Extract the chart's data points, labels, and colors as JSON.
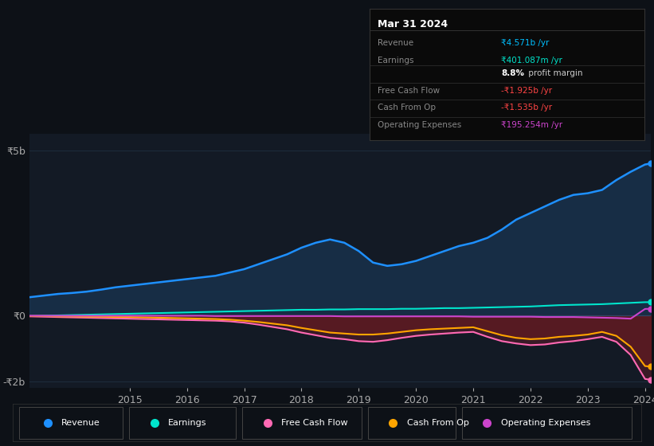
{
  "bg_color": "#0d1117",
  "plot_bg_color": "#131a25",
  "grid_color": "#1e2d3d",
  "years": [
    2013.25,
    2013.5,
    2013.75,
    2014.0,
    2014.25,
    2014.5,
    2014.75,
    2015.0,
    2015.25,
    2015.5,
    2015.75,
    2016.0,
    2016.25,
    2016.5,
    2016.75,
    2017.0,
    2017.25,
    2017.5,
    2017.75,
    2018.0,
    2018.25,
    2018.5,
    2018.75,
    2019.0,
    2019.25,
    2019.5,
    2019.75,
    2020.0,
    2020.25,
    2020.5,
    2020.75,
    2021.0,
    2021.25,
    2021.5,
    2021.75,
    2022.0,
    2022.25,
    2022.5,
    2022.75,
    2023.0,
    2023.25,
    2023.5,
    2023.75,
    2024.0,
    2024.1
  ],
  "revenue": [
    0.55,
    0.6,
    0.65,
    0.68,
    0.72,
    0.78,
    0.85,
    0.9,
    0.95,
    1.0,
    1.05,
    1.1,
    1.15,
    1.2,
    1.3,
    1.4,
    1.55,
    1.7,
    1.85,
    2.05,
    2.2,
    2.3,
    2.2,
    1.95,
    1.6,
    1.5,
    1.55,
    1.65,
    1.8,
    1.95,
    2.1,
    2.2,
    2.35,
    2.6,
    2.9,
    3.1,
    3.3,
    3.5,
    3.65,
    3.7,
    3.8,
    4.1,
    4.35,
    4.57,
    4.6
  ],
  "earnings": [
    -0.02,
    -0.01,
    0.0,
    0.01,
    0.02,
    0.03,
    0.04,
    0.05,
    0.06,
    0.07,
    0.08,
    0.09,
    0.1,
    0.11,
    0.12,
    0.13,
    0.14,
    0.15,
    0.16,
    0.17,
    0.17,
    0.18,
    0.18,
    0.19,
    0.19,
    0.19,
    0.2,
    0.2,
    0.21,
    0.22,
    0.22,
    0.23,
    0.24,
    0.25,
    0.26,
    0.27,
    0.29,
    0.31,
    0.32,
    0.33,
    0.34,
    0.36,
    0.38,
    0.4,
    0.4
  ],
  "free_cash_flow": [
    -0.03,
    -0.04,
    -0.05,
    -0.06,
    -0.07,
    -0.08,
    -0.09,
    -0.1,
    -0.11,
    -0.12,
    -0.13,
    -0.14,
    -0.15,
    -0.16,
    -0.18,
    -0.22,
    -0.28,
    -0.35,
    -0.42,
    -0.52,
    -0.6,
    -0.68,
    -0.72,
    -0.78,
    -0.8,
    -0.75,
    -0.68,
    -0.62,
    -0.58,
    -0.55,
    -0.52,
    -0.5,
    -0.65,
    -0.78,
    -0.85,
    -0.9,
    -0.88,
    -0.82,
    -0.78,
    -0.72,
    -0.65,
    -0.8,
    -1.2,
    -1.925,
    -1.95
  ],
  "cash_from_op": [
    -0.02,
    -0.02,
    -0.03,
    -0.03,
    -0.04,
    -0.04,
    -0.05,
    -0.05,
    -0.06,
    -0.07,
    -0.08,
    -0.09,
    -0.1,
    -0.11,
    -0.13,
    -0.16,
    -0.2,
    -0.25,
    -0.3,
    -0.38,
    -0.45,
    -0.52,
    -0.55,
    -0.58,
    -0.58,
    -0.55,
    -0.5,
    -0.45,
    -0.42,
    -0.4,
    -0.38,
    -0.36,
    -0.48,
    -0.6,
    -0.68,
    -0.72,
    -0.7,
    -0.65,
    -0.62,
    -0.58,
    -0.5,
    -0.62,
    -0.95,
    -1.535,
    -1.55
  ],
  "operating_expenses": [
    -0.01,
    -0.01,
    -0.01,
    -0.01,
    -0.01,
    -0.01,
    -0.01,
    -0.01,
    -0.01,
    -0.01,
    -0.01,
    -0.01,
    -0.01,
    -0.02,
    -0.02,
    -0.02,
    -0.02,
    -0.02,
    -0.02,
    -0.02,
    -0.02,
    -0.02,
    -0.03,
    -0.03,
    -0.03,
    -0.03,
    -0.03,
    -0.03,
    -0.03,
    -0.03,
    -0.03,
    -0.04,
    -0.04,
    -0.04,
    -0.04,
    -0.04,
    -0.05,
    -0.05,
    -0.05,
    -0.06,
    -0.07,
    -0.08,
    -0.1,
    0.195,
    0.2
  ],
  "revenue_color": "#1e90ff",
  "earnings_color": "#00e5cc",
  "free_cash_flow_color": "#ff69b4",
  "cash_from_op_color": "#ffa500",
  "operating_expenses_color": "#cc44cc",
  "revenue_fill_color": "#1a3a5c",
  "neg_fill_color": "#5c1a2a",
  "ylim": [
    -2.2,
    5.5
  ],
  "yticks": [
    -2.0,
    0.0,
    5.0
  ],
  "ytick_labels": [
    "-₹2b",
    "₹0",
    "₹5b"
  ],
  "xticks": [
    2015,
    2016,
    2017,
    2018,
    2019,
    2020,
    2021,
    2022,
    2023,
    2024
  ],
  "legend_items": [
    {
      "label": "Revenue",
      "color": "#1e90ff"
    },
    {
      "label": "Earnings",
      "color": "#00e5cc"
    },
    {
      "label": "Free Cash Flow",
      "color": "#ff69b4"
    },
    {
      "label": "Cash From Op",
      "color": "#ffa500"
    },
    {
      "label": "Operating Expenses",
      "color": "#cc44cc"
    }
  ],
  "box_title": "Mar 31 2024",
  "box_rows": [
    {
      "label": "Revenue",
      "value": "₹4.571b /yr",
      "value_color": "#00bfff",
      "bold_value": false
    },
    {
      "label": "Earnings",
      "value": "₹401.087m /yr",
      "value_color": "#00e5cc",
      "bold_value": false
    },
    {
      "label": "",
      "value": "8.8%",
      "value_color": "#ffffff",
      "bold_value": true,
      "suffix": " profit margin"
    },
    {
      "label": "Free Cash Flow",
      "value": "-₹1.925b /yr",
      "value_color": "#ff4444",
      "bold_value": false
    },
    {
      "label": "Cash From Op",
      "value": "-₹1.535b /yr",
      "value_color": "#ff4444",
      "bold_value": false
    },
    {
      "label": "Operating Expenses",
      "value": "₹195.254m /yr",
      "value_color": "#cc44cc",
      "bold_value": false
    }
  ]
}
